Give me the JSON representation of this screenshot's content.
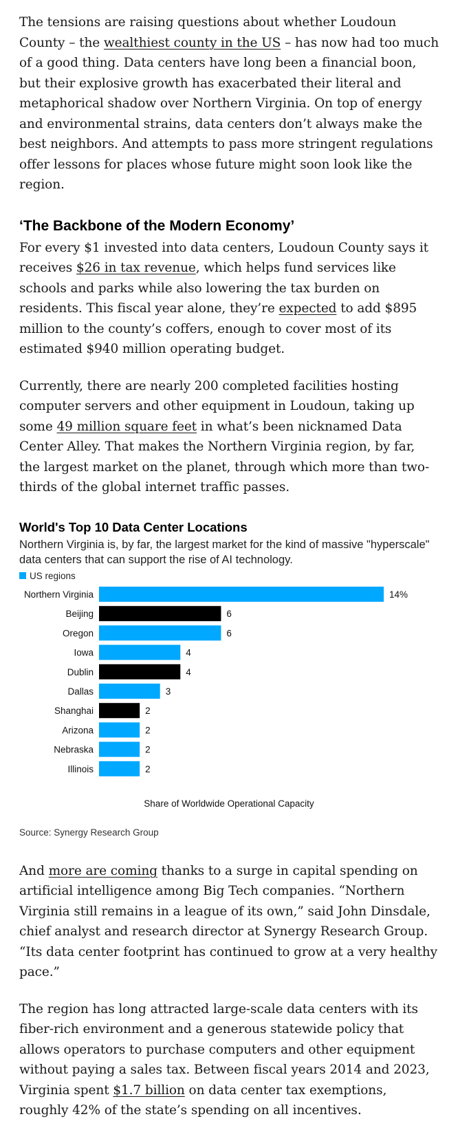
{
  "intro": {
    "p_pre": "The tensions are raising questions about whether Loudoun County – the ",
    "p_link": "wealthiest county in the US",
    "p_post": " – has now had too much of a good thing. Data centers have long been a financial boon, but their explosive growth has exacerbated their literal and metaphorical shadow over Northern Virginia. On top of energy and environmental strains, data centers don’t always make the best neighbors. And attempts to pass more stringent regulations offer lessons for places whose future might soon look like the region."
  },
  "section": {
    "heading": "‘The Backbone of the Modern Economy’"
  },
  "para2": {
    "pre": "For every $1 invested into data centers, Loudoun County says it receives ",
    "link1": "$26 in tax revenue",
    "mid": ", which helps fund services like schools and parks while also lowering the tax burden on residents. This fiscal year alone, they’re ",
    "link2": "expected",
    "post": " to add $895 million to the county’s coffers, enough to cover most of its estimated $940 million operating budget."
  },
  "para3": {
    "pre": "Currently, there are nearly 200 completed facilities hosting computer servers and other equipment in Loudoun, taking up some ",
    "link": "49 million square feet",
    "post": " in what’s been nicknamed Data Center Alley. That makes the Northern Virginia region, by far, the largest market on the planet, through which more than two-thirds of the global internet traffic passes."
  },
  "chart_data": {
    "type": "bar",
    "orientation": "horizontal",
    "title": "World's Top 10 Data Center Locations",
    "subtitle": "Northern Virginia is, by far, the largest market for the kind of massive \"hyperscale\" data centers that can support the rise of AI technology.",
    "legend": [
      {
        "label": "US regions",
        "color": "#00a8ff"
      }
    ],
    "categories": [
      "Northern Virginia",
      "Beijing",
      "Oregon",
      "Iowa",
      "Dublin",
      "Dallas",
      "Shanghai",
      "Arizona",
      "Nebraska",
      "Illinois"
    ],
    "values": [
      14,
      6,
      6,
      4,
      4,
      3,
      2,
      2,
      2,
      2
    ],
    "value_labels": [
      "14%",
      "6",
      "6",
      "4",
      "4",
      "3",
      "2",
      "2",
      "2",
      "2"
    ],
    "is_us": [
      true,
      false,
      true,
      true,
      false,
      true,
      false,
      true,
      true,
      true
    ],
    "colors": {
      "us": "#00a8ff",
      "other": "#000000"
    },
    "xlabel": "Share of Worldwide Operational Capacity",
    "ylabel": "",
    "xlim": [
      0,
      14
    ],
    "source": "Source: Synergy Research Group"
  },
  "para4": {
    "pre": "And ",
    "link": "more are coming",
    "post": " thanks to a surge in capital spending on artificial intelligence among Big Tech companies. “Northern Virginia still remains in a league of its own,” said John Dinsdale, chief analyst and research director at Synergy Research Group. “Its data center footprint has continued to grow at a very healthy pace.”"
  },
  "para5": {
    "pre": "The region has long attracted large-scale data centers with its fiber-rich environment and a generous statewide policy that allows operators to purchase computers and other equipment without paying a sales tax. Between fiscal years 2014 and 2023, Virginia spent ",
    "link": "$1.7 billion",
    "post": " on data center tax exemptions, roughly 42% of the state’s spending on all incentives."
  }
}
